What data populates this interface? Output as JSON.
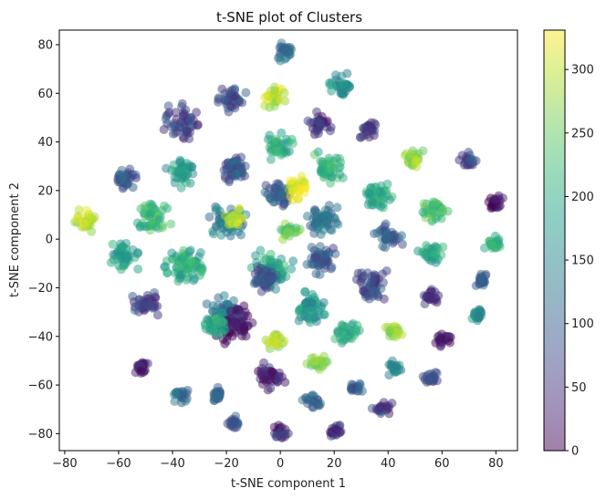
{
  "chart_data": {
    "type": "scatter",
    "title": "t-SNE plot of Clusters",
    "xlabel": "t-SNE component 1",
    "ylabel": "t-SNE component 2",
    "xlim": [
      -82,
      88
    ],
    "ylim": [
      -87,
      86
    ],
    "xticks": [
      -80,
      -60,
      -40,
      -20,
      0,
      20,
      40,
      60,
      80
    ],
    "yticks": [
      -80,
      -60,
      -40,
      -20,
      0,
      20,
      40,
      60,
      80
    ],
    "grid": false,
    "marker_alpha": 0.5,
    "colormap": "viridis",
    "colorbar": {
      "min": 0,
      "max": 331,
      "ticks": [
        0,
        50,
        100,
        150,
        200,
        250,
        300
      ]
    },
    "clusters": [
      {
        "x": 2,
        "y": 77,
        "r": 3,
        "c": 110
      },
      {
        "x": -18,
        "y": 58,
        "r": 4,
        "c": 80
      },
      {
        "x": -2,
        "y": 59,
        "r": 3.5,
        "c": 300
      },
      {
        "x": 22,
        "y": 63,
        "r": 3.5,
        "c": 160
      },
      {
        "x": -36,
        "y": 48,
        "r": 5,
        "c": 70
      },
      {
        "x": 15,
        "y": 47,
        "r": 3.5,
        "c": 40
      },
      {
        "x": 33,
        "y": 45,
        "r": 3,
        "c": 60
      },
      {
        "x": -1,
        "y": 38,
        "r": 4,
        "c": 200
      },
      {
        "x": -17,
        "y": 29,
        "r": 5,
        "c": 90
      },
      {
        "x": -36,
        "y": 28,
        "r": 4.5,
        "c": 180
      },
      {
        "x": 18,
        "y": 29,
        "r": 4.5,
        "c": 220
      },
      {
        "x": 49,
        "y": 33,
        "r": 3,
        "c": 280
      },
      {
        "x": -58,
        "y": 25,
        "r": 3.5,
        "c": 90
      },
      {
        "x": 70,
        "y": 32,
        "r": 2.5,
        "c": 70
      },
      {
        "x": 0,
        "y": 18,
        "r": 4.5,
        "c": 100
      },
      {
        "x": 7,
        "y": 21,
        "r": 3.5,
        "c": 320
      },
      {
        "x": 36,
        "y": 18,
        "r": 4.5,
        "c": 200
      },
      {
        "x": 80,
        "y": 15,
        "r": 2.5,
        "c": 10
      },
      {
        "x": -72,
        "y": 7,
        "r": 3.5,
        "c": 300
      },
      {
        "x": -47,
        "y": 9,
        "r": 5,
        "c": 220
      },
      {
        "x": -19,
        "y": 7,
        "r": 5.5,
        "c": 140
      },
      {
        "x": -17,
        "y": 9,
        "r": 3,
        "c": 310
      },
      {
        "x": 16,
        "y": 8,
        "r": 5,
        "c": 120
      },
      {
        "x": 57,
        "y": 12,
        "r": 4,
        "c": 230
      },
      {
        "x": 3,
        "y": 3,
        "r": 3,
        "c": 250
      },
      {
        "x": 40,
        "y": 1,
        "r": 4,
        "c": 100
      },
      {
        "x": 79,
        "y": -2,
        "r": 2.5,
        "c": 210
      },
      {
        "x": -58,
        "y": -7,
        "r": 4.5,
        "c": 180
      },
      {
        "x": -35,
        "y": -11,
        "r": 6,
        "c": 200
      },
      {
        "x": 15,
        "y": -8,
        "r": 5,
        "c": 90
      },
      {
        "x": 56,
        "y": -6,
        "r": 3.5,
        "c": 190
      },
      {
        "x": -3,
        "y": -13,
        "r": 6,
        "c": 190
      },
      {
        "x": -6,
        "y": -16,
        "r": 4,
        "c": 80
      },
      {
        "x": 34,
        "y": -19,
        "r": 5,
        "c": 70
      },
      {
        "x": 75,
        "y": -17,
        "r": 2.5,
        "c": 90
      },
      {
        "x": -50,
        "y": -27,
        "r": 4,
        "c": 60
      },
      {
        "x": 56,
        "y": -24,
        "r": 2.5,
        "c": 40
      },
      {
        "x": -21,
        "y": -30,
        "r": 5,
        "c": 120
      },
      {
        "x": -17,
        "y": -35,
        "r": 5.5,
        "c": 10
      },
      {
        "x": -24,
        "y": -35,
        "r": 4,
        "c": 200
      },
      {
        "x": 11,
        "y": -28,
        "r": 5,
        "c": 170
      },
      {
        "x": 25,
        "y": -38,
        "r": 3.5,
        "c": 200
      },
      {
        "x": 42,
        "y": -38,
        "r": 2.5,
        "c": 280
      },
      {
        "x": 73,
        "y": -31,
        "r": 2.5,
        "c": 160
      },
      {
        "x": -2,
        "y": -42,
        "r": 3,
        "c": 290
      },
      {
        "x": 61,
        "y": -41,
        "r": 2.5,
        "c": 15
      },
      {
        "x": 14,
        "y": -51,
        "r": 3,
        "c": 270
      },
      {
        "x": -51,
        "y": -52,
        "r": 2.5,
        "c": 30
      },
      {
        "x": 43,
        "y": -53,
        "r": 2.5,
        "c": 150
      },
      {
        "x": -4,
        "y": -57,
        "r": 4,
        "c": 30
      },
      {
        "x": 56,
        "y": -57,
        "r": 2.5,
        "c": 80
      },
      {
        "x": 28,
        "y": -61,
        "r": 2,
        "c": 100
      },
      {
        "x": -37,
        "y": -64,
        "r": 2.5,
        "c": 120
      },
      {
        "x": -23,
        "y": -64,
        "r": 2.5,
        "c": 100
      },
      {
        "x": 12,
        "y": -67,
        "r": 2.5,
        "c": 110
      },
      {
        "x": 38,
        "y": -70,
        "r": 2.5,
        "c": 60
      },
      {
        "x": -17,
        "y": -76,
        "r": 2.5,
        "c": 80
      },
      {
        "x": 0,
        "y": -79,
        "r": 2.5,
        "c": 40
      },
      {
        "x": 21,
        "y": -79,
        "r": 2.5,
        "c": 40
      }
    ]
  }
}
